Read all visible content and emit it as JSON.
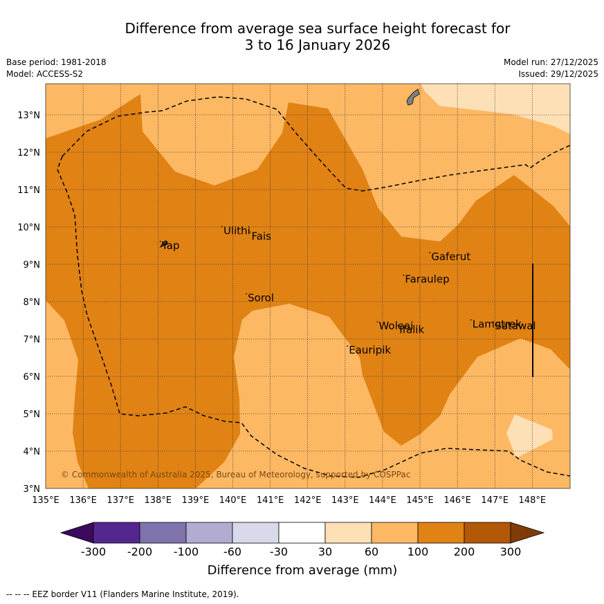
{
  "title": {
    "line1": "Difference from average sea surface height forecast for",
    "line2": "3 to 16 January 2026"
  },
  "meta": {
    "base_period": "Base period: 1981-2018",
    "model": "Model: ACCESS-S2",
    "model_run": "Model run: 27/12/2025",
    "issued": "Issued: 29/12/2025"
  },
  "map": {
    "lon_labels": [
      "135°E",
      "136°E",
      "137°E",
      "138°E",
      "139°E",
      "140°E",
      "141°E",
      "142°E",
      "143°E",
      "144°E",
      "145°E",
      "146°E",
      "147°E",
      "148°E"
    ],
    "lat_labels": [
      "3°N",
      "4°N",
      "5°N",
      "6°N",
      "7°N",
      "8°N",
      "9°N",
      "10°N",
      "11°N",
      "12°N",
      "13°N"
    ],
    "places": [
      {
        "name": "Ulithi",
        "lon": 139.75,
        "lat": 9.9
      },
      {
        "name": "Fais",
        "lon": 140.5,
        "lat": 9.75
      },
      {
        "name": "Yap",
        "lon": 138.1,
        "lat": 9.5
      },
      {
        "name": "Gaferut",
        "lon": 145.3,
        "lat": 9.2
      },
      {
        "name": "Faraulep",
        "lon": 144.6,
        "lat": 8.6
      },
      {
        "name": "Sorol",
        "lon": 140.4,
        "lat": 8.1
      },
      {
        "name": "Lamotrek",
        "lon": 146.4,
        "lat": 7.4
      },
      {
        "name": "Woleai",
        "lon": 143.9,
        "lat": 7.35
      },
      {
        "name": "Ifalik",
        "lon": 144.45,
        "lat": 7.25
      },
      {
        "name": "Satawal",
        "lon": 147.0,
        "lat": 7.35
      },
      {
        "name": "Eauripik",
        "lon": 143.1,
        "lat": 6.7
      }
    ],
    "copyright": "© Commonwealth of Australia 2025, Bureau of Meteorology, supported by COSPPac"
  },
  "colorbar": {
    "labels": [
      "-300",
      "-200",
      "-100",
      "-60",
      "-30",
      "30",
      "60",
      "100",
      "200",
      "300"
    ],
    "colors": [
      "#3b0a5c",
      "#54278f",
      "#8072ad",
      "#b2abd2",
      "#d8daeb",
      "#ffffff",
      "#fee0b6",
      "#fdb863",
      "#e08214",
      "#b35806",
      "#7f3b08"
    ],
    "label": "Difference from average (mm)"
  },
  "footnote": "--  --  -- EEZ border V11 (Flanders Marine Institute, 2019)."
}
